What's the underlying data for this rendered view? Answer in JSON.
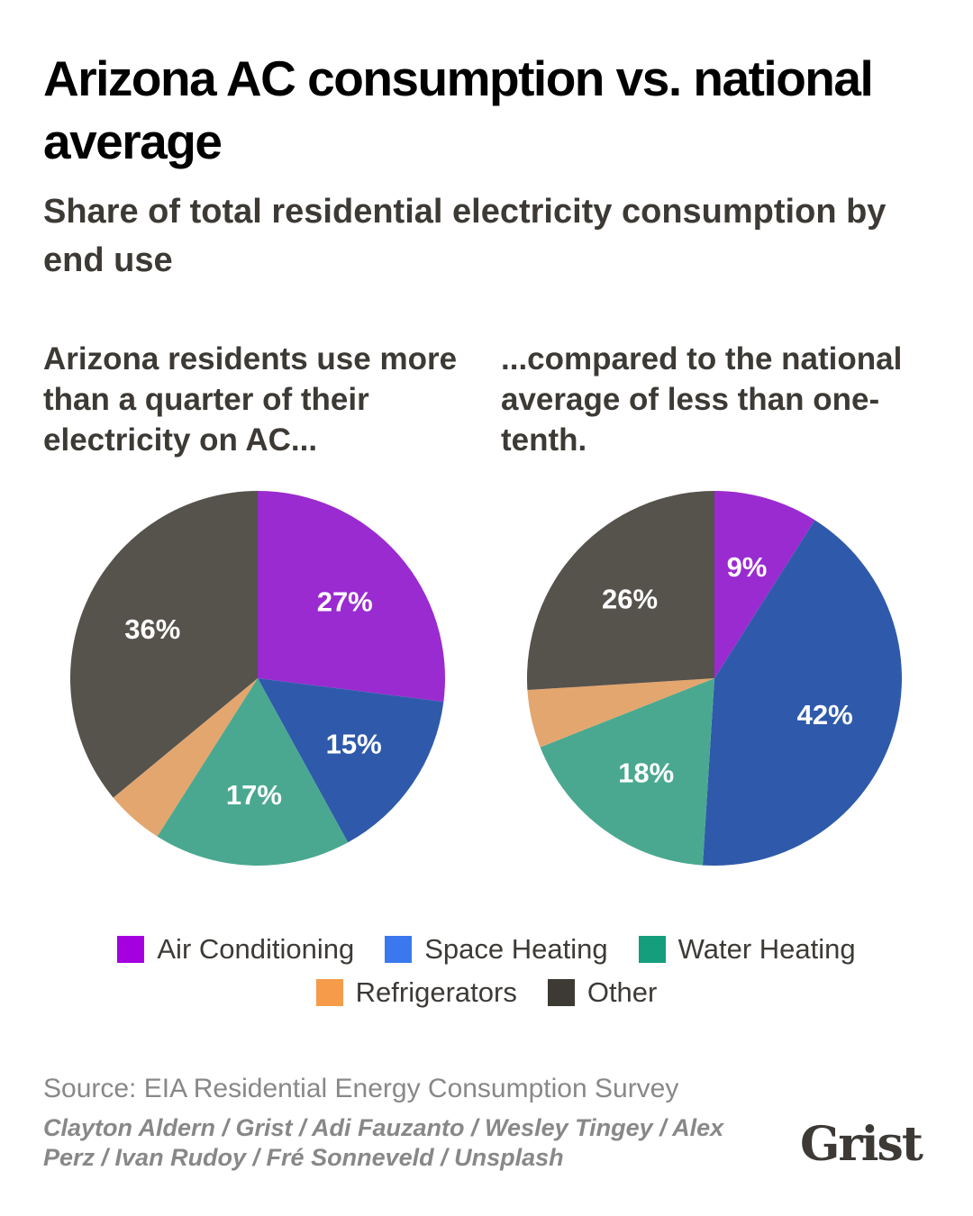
{
  "title": "Arizona AC consumption vs. national average",
  "subtitle": "Share of total residential electricity consumption by end use",
  "chart_data": [
    {
      "type": "pie",
      "title": "Arizona residents use more than a quarter of their electricity on AC...",
      "categories": [
        "Air Conditioning",
        "Space Heating",
        "Water Heating",
        "Refrigerators",
        "Other"
      ],
      "values": [
        27,
        15,
        17,
        5,
        36
      ],
      "labels": [
        "27%",
        "15%",
        "17%",
        "",
        "36%"
      ]
    },
    {
      "type": "pie",
      "title": "...compared to the national average of less than one-tenth.",
      "categories": [
        "Air Conditioning",
        "Space Heating",
        "Water Heating",
        "Refrigerators",
        "Other"
      ],
      "values": [
        9,
        42,
        18,
        5,
        26
      ],
      "labels": [
        "9%",
        "42%",
        "18%",
        "",
        "26%"
      ]
    }
  ],
  "legend": [
    {
      "label": "Air Conditioning",
      "color": "#a400e0"
    },
    {
      "label": "Space Heating",
      "color": "#3b78ee"
    },
    {
      "label": "Water Heating",
      "color": "#149e7c"
    },
    {
      "label": "Refrigerators",
      "color": "#f59b4a"
    },
    {
      "label": "Other",
      "color": "#3d3a33"
    }
  ],
  "slice_colors": [
    "#9a2bd0",
    "#2f5aab",
    "#4aa890",
    "#e3a66e",
    "#56524c"
  ],
  "source": "Source: EIA Residential Energy Consumption Survey",
  "credits": "Clayton Aldern / Grist / Adi Fauzanto / Wesley Tingey / Alex Perz / Ivan Rudoy / Fré Sonneveld / Unsplash",
  "logo": "Grist"
}
